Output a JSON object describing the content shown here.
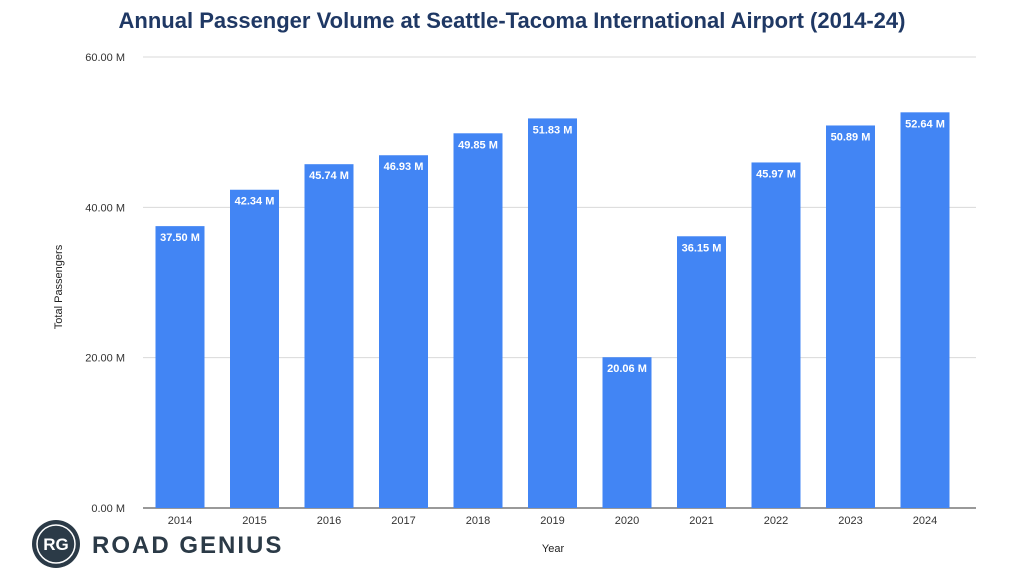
{
  "chart_data": {
    "type": "bar",
    "title": "Annual Passenger Volume at Seattle-Tacoma International Airport (2014-24)",
    "xlabel": "Year",
    "ylabel": "Total Passengers",
    "categories": [
      "2014",
      "2015",
      "2016",
      "2017",
      "2018",
      "2019",
      "2020",
      "2021",
      "2022",
      "2023",
      "2024"
    ],
    "values": [
      37.5,
      42.34,
      45.74,
      46.93,
      49.85,
      51.83,
      20.06,
      36.15,
      45.97,
      50.89,
      52.64
    ],
    "value_labels": [
      "37.50 M",
      "42.34 M",
      "45.74 M",
      "46.93 M",
      "49.85 M",
      "51.83 M",
      "20.06 M",
      "36.15 M",
      "45.97 M",
      "50.89 M",
      "52.64 M"
    ],
    "ylim": [
      0,
      60
    ],
    "yticks": [
      0,
      20,
      40,
      60
    ],
    "ytick_labels": [
      "0.00 M",
      "20.00 M",
      "40.00 M",
      "60.00 M"
    ],
    "grid": true,
    "legend": "none",
    "bar_color": "#4285f4"
  },
  "logo": {
    "monogram": "RG",
    "text": "ROAD GENIUS",
    "color": "#2b3a47"
  }
}
